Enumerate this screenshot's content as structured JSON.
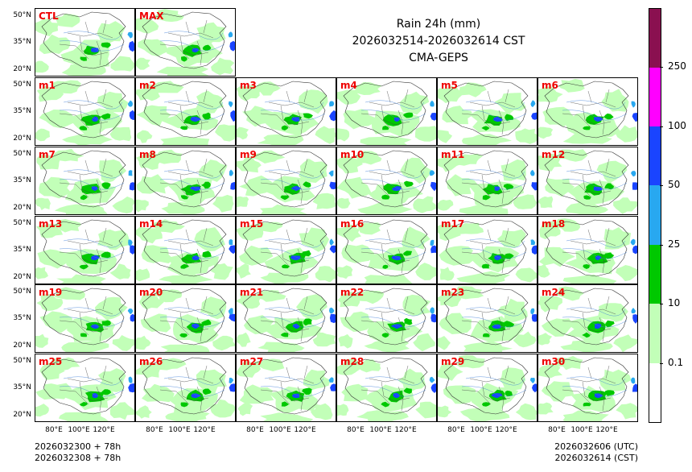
{
  "title": {
    "line1": "Rain 24h (mm)",
    "line2": "2026032514-2026032614 CST",
    "line3": "CMA-GEPS"
  },
  "panels": [
    "CTL",
    "MAX",
    "m1",
    "m2",
    "m3",
    "m4",
    "m5",
    "m6",
    "m7",
    "m8",
    "m9",
    "m10",
    "m11",
    "m12",
    "m13",
    "m14",
    "m15",
    "m16",
    "m17",
    "m18",
    "m19",
    "m20",
    "m21",
    "m22",
    "m23",
    "m24",
    "m25",
    "m26",
    "m27",
    "m28",
    "m29",
    "m30"
  ],
  "lat_labels": [
    "50°N",
    "35°N",
    "20°N"
  ],
  "lon_labels": [
    "80°E",
    "100°E",
    "120°E"
  ],
  "footer": {
    "left_line1": "2026032300 + 78h",
    "left_line2": "2026032308 + 78h",
    "right_line1": "2026032606 (UTC)",
    "right_line2": "2026032614 (CST)"
  },
  "colorbar": {
    "levels": [
      "0.1",
      "10",
      "25",
      "50",
      "100",
      "250"
    ],
    "colors": [
      "#ffffff",
      "#c2ffb8",
      "#00c800",
      "#28a8f0",
      "#1a44ff",
      "#ff00ff",
      "#8a1050"
    ]
  },
  "colors": {
    "label": "#ee0000",
    "light_green": "#c2ffb8",
    "green": "#00c800",
    "light_blue": "#28a8f0",
    "blue": "#1a44ff"
  }
}
